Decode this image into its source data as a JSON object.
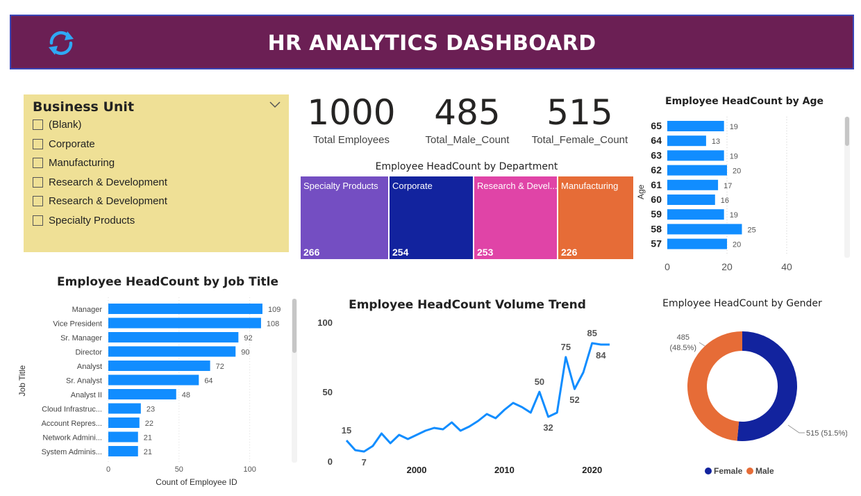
{
  "header": {
    "title": "HR ANALYTICS DASHBOARD",
    "refresh_icon": "refresh-icon",
    "bg_color": "#6b1f54"
  },
  "slicer": {
    "title": "Business Unit",
    "options": [
      "(Blank)",
      "Corporate",
      "Manufacturing",
      "Research & Development",
      "Research & Development",
      "Specialty Products"
    ]
  },
  "kpis": [
    {
      "value": "1000",
      "label": "Total Employees"
    },
    {
      "value": "485",
      "label": "Total_Male_Count"
    },
    {
      "value": "515",
      "label": "Total_Female_Count"
    }
  ],
  "department": {
    "title": "Employee HeadCount by Department",
    "tiles": [
      {
        "label": "Specialty Products",
        "value": "266",
        "color": "#744ec2"
      },
      {
        "label": "Corporate",
        "value": "254",
        "color": "#12239e"
      },
      {
        "label": "Research & Devel...",
        "value": "253",
        "color": "#e044a7"
      },
      {
        "label": "Manufacturing",
        "value": "226",
        "color": "#e66c37"
      }
    ]
  },
  "age_chart": {
    "title": "Employee HeadCount by Age",
    "ylabel": "Age",
    "chart_data": {
      "type": "bar",
      "orientation": "horizontal",
      "categories": [
        "65",
        "64",
        "63",
        "62",
        "61",
        "60",
        "59",
        "58",
        "57"
      ],
      "values": [
        19,
        13,
        19,
        20,
        17,
        16,
        19,
        25,
        20
      ],
      "ticks": [
        "0",
        "20",
        "40"
      ],
      "xlim": [
        0,
        40
      ],
      "ylabel": "Age",
      "color": "#118dff"
    }
  },
  "job_chart": {
    "title": "Employee HeadCount by Job Title",
    "chart_data": {
      "type": "bar",
      "orientation": "horizontal",
      "categories": [
        "Manager",
        "Vice President",
        "Sr. Manager",
        "Director",
        "Analyst",
        "Sr. Analyst",
        "Analyst II",
        "Cloud Infrastruc...",
        "Account Repres...",
        "Network Admini...",
        "System Adminis..."
      ],
      "values": [
        109,
        108,
        92,
        90,
        72,
        64,
        48,
        23,
        22,
        21,
        21
      ],
      "ticks": [
        "0",
        "50",
        "100"
      ],
      "xlim": [
        0,
        110
      ],
      "xlabel": "Count of Employee ID",
      "ylabel": "Job Title",
      "color": "#118dff"
    }
  },
  "trend_chart": {
    "title": "Employee HeadCount Volume Trend",
    "chart_data": {
      "type": "line",
      "x": [
        1992,
        1993,
        1994,
        1995,
        1996,
        1997,
        1998,
        1999,
        2000,
        2001,
        2002,
        2003,
        2004,
        2005,
        2006,
        2007,
        2008,
        2009,
        2010,
        2011,
        2012,
        2013,
        2014,
        2015,
        2016,
        2017,
        2018,
        2019,
        2020,
        2021,
        2022
      ],
      "y": [
        15,
        8,
        7,
        11,
        20,
        13,
        19,
        16,
        19,
        22,
        24,
        23,
        28,
        22,
        25,
        29,
        34,
        31,
        37,
        42,
        39,
        35,
        50,
        32,
        35,
        75,
        52,
        64,
        85,
        84,
        84
      ],
      "point_labels": [
        {
          "x": 1992,
          "label": "15"
        },
        {
          "x": 1994,
          "label": "7"
        },
        {
          "x": 2014,
          "label": "50"
        },
        {
          "x": 2015,
          "label": "32"
        },
        {
          "x": 2017,
          "label": "75"
        },
        {
          "x": 2018,
          "label": "52"
        },
        {
          "x": 2020,
          "label": "85"
        },
        {
          "x": 2021,
          "label": "84"
        }
      ],
      "x_ticks": [
        "2000",
        "2010",
        "2020"
      ],
      "y_ticks": [
        "0",
        "50",
        "100"
      ],
      "ylim": [
        0,
        100
      ],
      "color": "#118dff"
    }
  },
  "gender_chart": {
    "title": "Employee HeadCount by Gender",
    "chart_data": {
      "type": "pie",
      "donut": true,
      "categories": [
        "Female",
        "Male"
      ],
      "values": [
        515,
        485
      ],
      "percents": [
        "51.5%",
        "48.5%"
      ],
      "slice_labels": [
        "515 (51.5%)",
        "485 (48.5%)"
      ],
      "colors": [
        "#12239e",
        "#e66c37"
      ],
      "legend": [
        "Female",
        "Male"
      ],
      "legend_position": "bottom"
    }
  }
}
